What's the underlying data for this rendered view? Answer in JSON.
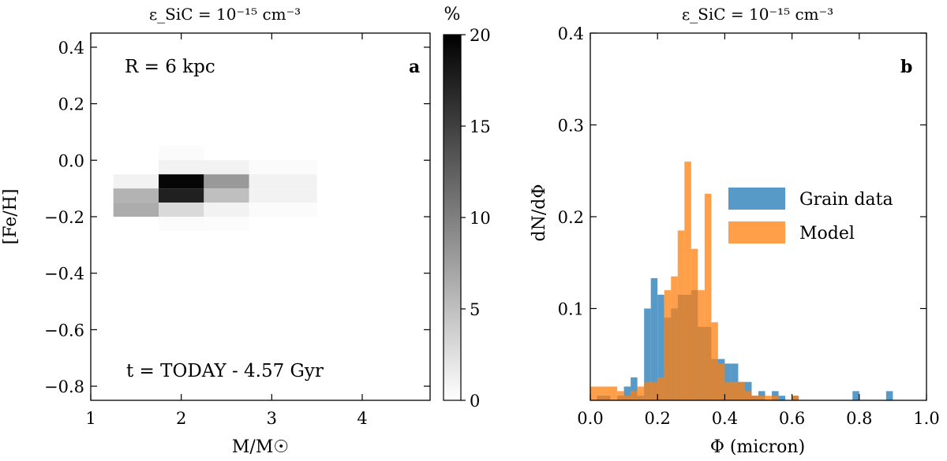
{
  "chart_data": [
    {
      "panel": "a",
      "type": "heatmap",
      "title": "ε_SiC = 10⁻¹⁵ cm⁻³",
      "xlabel": "M/M☉",
      "ylabel": "[Fe/H]",
      "xlim": [
        1.0,
        4.75
      ],
      "ylim": [
        -0.85,
        0.45
      ],
      "xticks": [
        1,
        2,
        3,
        4
      ],
      "xtick_labels": [
        "1",
        "2",
        "3",
        "4"
      ],
      "yticks": [
        0.4,
        0.2,
        0.0,
        -0.2,
        -0.4,
        -0.6,
        -0.8
      ],
      "ytick_labels": [
        "0.4",
        "0.2",
        "0.0",
        "−0.2",
        "−0.4",
        "−0.6",
        "−0.8"
      ],
      "annotation_top": "R = 6 kpc",
      "annotation_bottom": "t = TODAY - 4.57 Gyr",
      "panel_label": "a",
      "cells": [
        {
          "x": [
            1.75,
            2.25
          ],
          "y": [
            0.0,
            0.05
          ],
          "value": 0.3
        },
        {
          "x": [
            1.75,
            2.25
          ],
          "y": [
            -0.05,
            0.0
          ],
          "value": 1.0
        },
        {
          "x": [
            1.75,
            2.25
          ],
          "y": [
            -0.1,
            -0.05
          ],
          "value": 19.5
        },
        {
          "x": [
            1.75,
            2.25
          ],
          "y": [
            -0.15,
            -0.1
          ],
          "value": 17.5
        },
        {
          "x": [
            1.75,
            2.25
          ],
          "y": [
            -0.2,
            -0.15
          ],
          "value": 3.0
        },
        {
          "x": [
            1.75,
            2.25
          ],
          "y": [
            -0.25,
            -0.2
          ],
          "value": 0.3
        },
        {
          "x": [
            1.25,
            1.75
          ],
          "y": [
            -0.1,
            -0.05
          ],
          "value": 1.0
        },
        {
          "x": [
            1.25,
            1.75
          ],
          "y": [
            -0.15,
            -0.1
          ],
          "value": 6.0
        },
        {
          "x": [
            1.25,
            1.75
          ],
          "y": [
            -0.2,
            -0.15
          ],
          "value": 6.5
        },
        {
          "x": [
            2.25,
            2.75
          ],
          "y": [
            -0.05,
            0.0
          ],
          "value": 1.0
        },
        {
          "x": [
            2.25,
            2.75
          ],
          "y": [
            -0.1,
            -0.05
          ],
          "value": 8.0
        },
        {
          "x": [
            2.25,
            2.75
          ],
          "y": [
            -0.15,
            -0.1
          ],
          "value": 5.0
        },
        {
          "x": [
            2.25,
            2.75
          ],
          "y": [
            -0.2,
            -0.15
          ],
          "value": 1.0
        },
        {
          "x": [
            2.25,
            2.75
          ],
          "y": [
            -0.25,
            -0.2
          ],
          "value": 0.2
        },
        {
          "x": [
            2.75,
            3.5
          ],
          "y": [
            -0.05,
            0.0
          ],
          "value": 0.3
        },
        {
          "x": [
            2.75,
            3.5
          ],
          "y": [
            -0.1,
            -0.05
          ],
          "value": 1.0
        },
        {
          "x": [
            2.75,
            3.5
          ],
          "y": [
            -0.15,
            -0.1
          ],
          "value": 1.0
        },
        {
          "x": [
            2.75,
            3.5
          ],
          "y": [
            -0.2,
            -0.15
          ],
          "value": 0.3
        }
      ],
      "colorbar": {
        "label": "%",
        "range": [
          0,
          20
        ],
        "ticks": [
          0,
          5,
          10,
          15,
          20
        ],
        "tick_labels": [
          "0",
          "5",
          "10",
          "15",
          "20"
        ]
      }
    },
    {
      "panel": "b",
      "type": "histogram",
      "title": "ε_SiC = 10⁻¹⁵ cm⁻³",
      "xlabel": "Φ (micron)",
      "ylabel": "dN/dΦ",
      "xlim": [
        0.0,
        1.0
      ],
      "ylim": [
        0.0,
        0.4
      ],
      "xticks": [
        0.0,
        0.2,
        0.4,
        0.6,
        0.8,
        1.0
      ],
      "xtick_labels": [
        "0.0",
        "0.2",
        "0.4",
        "0.6",
        "0.8",
        "1.0"
      ],
      "yticks": [
        0.1,
        0.2,
        0.3,
        0.4
      ],
      "ytick_labels": [
        "0.1",
        "0.2",
        "0.3",
        "0.4"
      ],
      "panel_label": "b",
      "bin_width": 0.02,
      "bins_start": 0.0,
      "series": [
        {
          "name": "Grain data",
          "color": "#1f77b4",
          "values": [
            0,
            0.005,
            0.005,
            0,
            0.005,
            0.015,
            0.025,
            0.005,
            0.1,
            0.133,
            0.115,
            0.09,
            0.1,
            0.115,
            0.115,
            0.12,
            0.08,
            0.08,
            0.045,
            0.045,
            0.04,
            0.04,
            0.02,
            0.02,
            0.005,
            0.01,
            0,
            0.01,
            0.005,
            0,
            0.005,
            0,
            0,
            0,
            0,
            0,
            0,
            0,
            0,
            0.01,
            0,
            0,
            0,
            0,
            0.01,
            0,
            0,
            0,
            0,
            0
          ]
        },
        {
          "name": "Model",
          "color": "#ff7f0e",
          "values": [
            0.015,
            0.015,
            0.015,
            0.015,
            0.01,
            0.005,
            0.01,
            0.015,
            0.02,
            0.02,
            0.025,
            0.12,
            0.135,
            0.185,
            0.26,
            0.165,
            0.12,
            0.225,
            0.085,
            0.04,
            0.02,
            0.02,
            0.02,
            0.01,
            0.005,
            0.005,
            0.005,
            0.005,
            0,
            0,
            0.005,
            0,
            0,
            0,
            0,
            0,
            0,
            0,
            0,
            0,
            0,
            0,
            0,
            0,
            0,
            0,
            0,
            0,
            0,
            0
          ]
        }
      ]
    }
  ]
}
